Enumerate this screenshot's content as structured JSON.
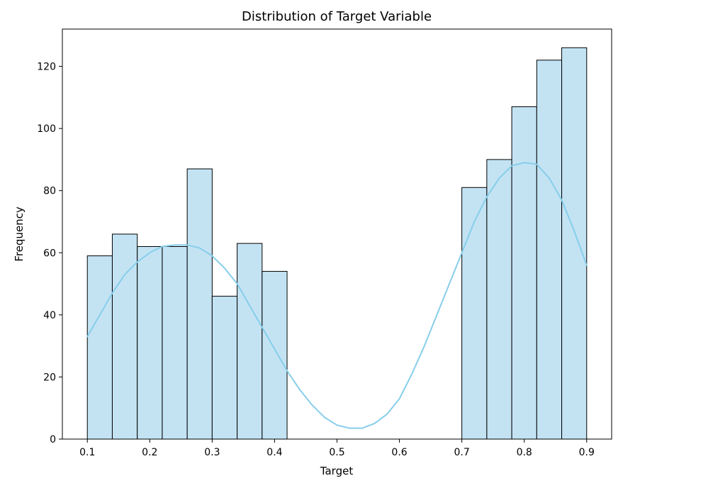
{
  "chart_data": {
    "type": "bar",
    "title": "Distribution of Target Variable",
    "xlabel": "Target",
    "ylabel": "Frequency",
    "xlim": [
      0.06,
      0.94
    ],
    "ylim": [
      0,
      132
    ],
    "x_ticks": [
      0.1,
      0.2,
      0.3,
      0.4,
      0.5,
      0.6,
      0.7,
      0.8,
      0.9
    ],
    "x_tick_labels": [
      "0.1",
      "0.2",
      "0.3",
      "0.4",
      "0.5",
      "0.6",
      "0.7",
      "0.8",
      "0.9"
    ],
    "y_ticks": [
      0,
      20,
      40,
      60,
      80,
      100,
      120
    ],
    "y_tick_labels": [
      "0",
      "20",
      "40",
      "60",
      "80",
      "100",
      "120"
    ],
    "grid": false,
    "bin_edges": [
      0.1,
      0.14,
      0.18,
      0.22,
      0.26,
      0.3,
      0.34,
      0.38,
      0.42,
      0.46,
      0.5,
      0.54,
      0.58,
      0.62,
      0.66,
      0.7,
      0.74,
      0.78,
      0.82,
      0.86,
      0.9
    ],
    "values": [
      59,
      66,
      62,
      62,
      87,
      46,
      63,
      54,
      0,
      0,
      0,
      0,
      0,
      0,
      0,
      81,
      90,
      107,
      122,
      126
    ],
    "bar_color": "#c3e3f3",
    "bar_edge_color": "#000000",
    "kde": {
      "color": "#87ceeb",
      "x": [
        0.1,
        0.12,
        0.14,
        0.16,
        0.18,
        0.2,
        0.22,
        0.24,
        0.26,
        0.28,
        0.3,
        0.32,
        0.34,
        0.36,
        0.38,
        0.4,
        0.42,
        0.44,
        0.46,
        0.48,
        0.5,
        0.52,
        0.54,
        0.56,
        0.58,
        0.6,
        0.62,
        0.64,
        0.66,
        0.68,
        0.7,
        0.72,
        0.74,
        0.76,
        0.78,
        0.8,
        0.82,
        0.84,
        0.86,
        0.88,
        0.9
      ],
      "y": [
        33,
        40,
        47,
        53,
        57,
        60,
        62,
        62.5,
        62.5,
        61.5,
        59,
        55,
        50,
        43,
        36,
        29,
        22,
        16,
        11,
        7,
        4.5,
        3.5,
        3.5,
        5,
        8,
        13,
        21,
        30,
        40,
        50,
        60,
        70,
        78,
        84,
        88,
        89,
        88.5,
        84,
        77,
        67,
        56
      ]
    }
  }
}
